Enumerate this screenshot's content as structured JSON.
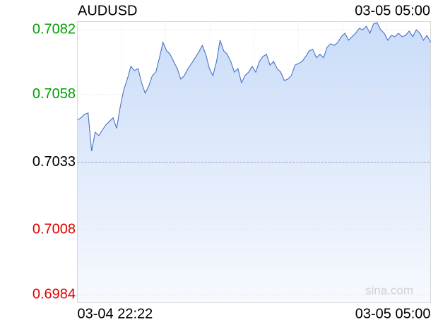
{
  "chart_data": {
    "type": "line",
    "title": "AUDUSD",
    "updated": "03-05 05:00",
    "watermark": "sina.com",
    "color": "#4a72c4",
    "up_color": "#00a000",
    "down_color": "#e00000",
    "reference": 0.7033,
    "ylim": [
      0.6981,
      0.7085
    ],
    "yticks": [
      0.7082,
      0.7058,
      0.7033,
      0.7008,
      0.6984
    ],
    "grid": true,
    "categories": [
      "03-04 22:22",
      null,
      null,
      null,
      null,
      null,
      null,
      null,
      null,
      null,
      null,
      null,
      null,
      null,
      null,
      null,
      null,
      null,
      null,
      null,
      null,
      null,
      null,
      null,
      null,
      null,
      null,
      null,
      null,
      null,
      null,
      null,
      null,
      null,
      null,
      null,
      null,
      null,
      null,
      null,
      null,
      null,
      null,
      null,
      null,
      null,
      null,
      null,
      null,
      null,
      null,
      null,
      null,
      null,
      null,
      null,
      null,
      null,
      null,
      null,
      null,
      null,
      null,
      null,
      null,
      null,
      null,
      null,
      null,
      null,
      null,
      null,
      null,
      null,
      null,
      null,
      null,
      null,
      null,
      null,
      null,
      null,
      null,
      null,
      null,
      null,
      null,
      null,
      null,
      null,
      null,
      null,
      null,
      null,
      null,
      null,
      null,
      null,
      null,
      "03-05 05:00"
    ],
    "values": [
      0.70486,
      0.70494,
      0.70507,
      0.70512,
      0.70371,
      0.70441,
      0.70428,
      0.70449,
      0.70468,
      0.70481,
      0.70494,
      0.70455,
      0.70533,
      0.70598,
      0.70637,
      0.70684,
      0.70669,
      0.70676,
      0.70624,
      0.70585,
      0.70611,
      0.7065,
      0.70663,
      0.70716,
      0.70773,
      0.70742,
      0.70729,
      0.70702,
      0.70676,
      0.70637,
      0.7065,
      0.70676,
      0.70695,
      0.70716,
      0.70736,
      0.70762,
      0.70729,
      0.70676,
      0.7065,
      0.70702,
      0.70781,
      0.70742,
      0.70729,
      0.70702,
      0.70663,
      0.70676,
      0.70624,
      0.7065,
      0.70663,
      0.70684,
      0.70663,
      0.70702,
      0.70721,
      0.70729,
      0.70689,
      0.70702,
      0.70676,
      0.70663,
      0.70632,
      0.70637,
      0.7065,
      0.70689,
      0.70695,
      0.70702,
      0.70721,
      0.70742,
      0.70747,
      0.70716,
      0.70729,
      0.70716,
      0.70755,
      0.70768,
      0.70762,
      0.70773,
      0.70794,
      0.70807,
      0.70781,
      0.70794,
      0.70807,
      0.70825,
      0.7082,
      0.70833,
      0.70807,
      0.70841,
      0.70846,
      0.7082,
      0.70807,
      0.70781,
      0.70799,
      0.70794,
      0.70807,
      0.70794,
      0.70799,
      0.70815,
      0.70794,
      0.7082,
      0.70807,
      0.70781,
      0.70799,
      0.70773
    ]
  }
}
